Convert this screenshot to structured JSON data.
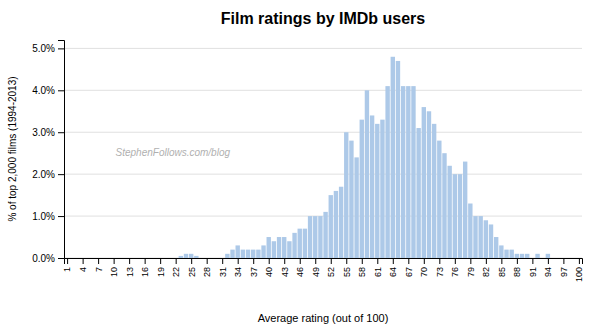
{
  "chart_data": {
    "type": "bar",
    "title": "Film ratings by IMDb users",
    "xlabel": "Average rating (out of 100)",
    "ylabel": "% of top 2,000 films (1994-2013)",
    "annotations": [
      "StephenFollows.com/blog"
    ],
    "color": "#adc9e8",
    "grid": true,
    "x": [
      1,
      2,
      3,
      4,
      5,
      6,
      7,
      8,
      9,
      10,
      11,
      12,
      13,
      14,
      15,
      16,
      17,
      18,
      19,
      20,
      21,
      22,
      23,
      24,
      25,
      26,
      27,
      28,
      29,
      30,
      31,
      32,
      33,
      34,
      35,
      36,
      37,
      38,
      39,
      40,
      41,
      42,
      43,
      44,
      45,
      46,
      47,
      48,
      49,
      50,
      51,
      52,
      53,
      54,
      55,
      56,
      57,
      58,
      59,
      60,
      61,
      62,
      63,
      64,
      65,
      66,
      67,
      68,
      69,
      70,
      71,
      72,
      73,
      74,
      75,
      76,
      77,
      78,
      79,
      80,
      81,
      82,
      83,
      84,
      85,
      86,
      87,
      88,
      89,
      90,
      91,
      92,
      93,
      94,
      95,
      96,
      97,
      98,
      99,
      100
    ],
    "values": [
      0.0,
      0.0,
      0.0,
      0.0,
      0.0,
      0.0,
      0.0,
      0.0,
      0.0,
      0.0,
      0.0,
      0.0,
      0.0,
      0.0,
      0.0,
      0.0,
      0.0,
      0.0,
      0.0,
      0.0,
      0.0,
      0.0,
      0.0005,
      0.001,
      0.001,
      0.0005,
      0.0,
      0.0,
      0.0,
      0.0,
      0.0,
      0.001,
      0.002,
      0.003,
      0.002,
      0.002,
      0.002,
      0.002,
      0.003,
      0.005,
      0.004,
      0.005,
      0.005,
      0.004,
      0.006,
      0.007,
      0.007,
      0.01,
      0.01,
      0.01,
      0.011,
      0.015,
      0.016,
      0.017,
      0.03,
      0.028,
      0.024,
      0.033,
      0.04,
      0.034,
      0.032,
      0.033,
      0.041,
      0.048,
      0.047,
      0.041,
      0.041,
      0.041,
      0.031,
      0.036,
      0.035,
      0.032,
      0.028,
      0.025,
      0.022,
      0.02,
      0.02,
      0.023,
      0.013,
      0.01,
      0.01,
      0.009,
      0.008,
      0.005,
      0.003,
      0.002,
      0.002,
      0.001,
      0.001,
      0.001,
      0.0,
      0.001,
      0.0,
      0.001,
      0.0,
      0.0,
      0.0,
      0.0,
      0.0,
      0.0
    ],
    "xlim": [
      0.4,
      100.6
    ],
    "xticks": [
      1,
      4,
      7,
      10,
      13,
      16,
      19,
      22,
      25,
      28,
      31,
      34,
      37,
      40,
      43,
      46,
      49,
      52,
      55,
      58,
      61,
      64,
      67,
      70,
      73,
      76,
      79,
      82,
      85,
      88,
      91,
      94,
      97,
      100
    ],
    "ylim": [
      0,
      0.052
    ],
    "yticks": [
      {
        "value": 0.0,
        "label": "0.0%"
      },
      {
        "value": 0.01,
        "label": "1.0%"
      },
      {
        "value": 0.02,
        "label": "2.0%"
      },
      {
        "value": 0.03,
        "label": "3.0%"
      },
      {
        "value": 0.04,
        "label": "4.0%"
      },
      {
        "value": 0.05,
        "label": "5.0%"
      }
    ]
  }
}
